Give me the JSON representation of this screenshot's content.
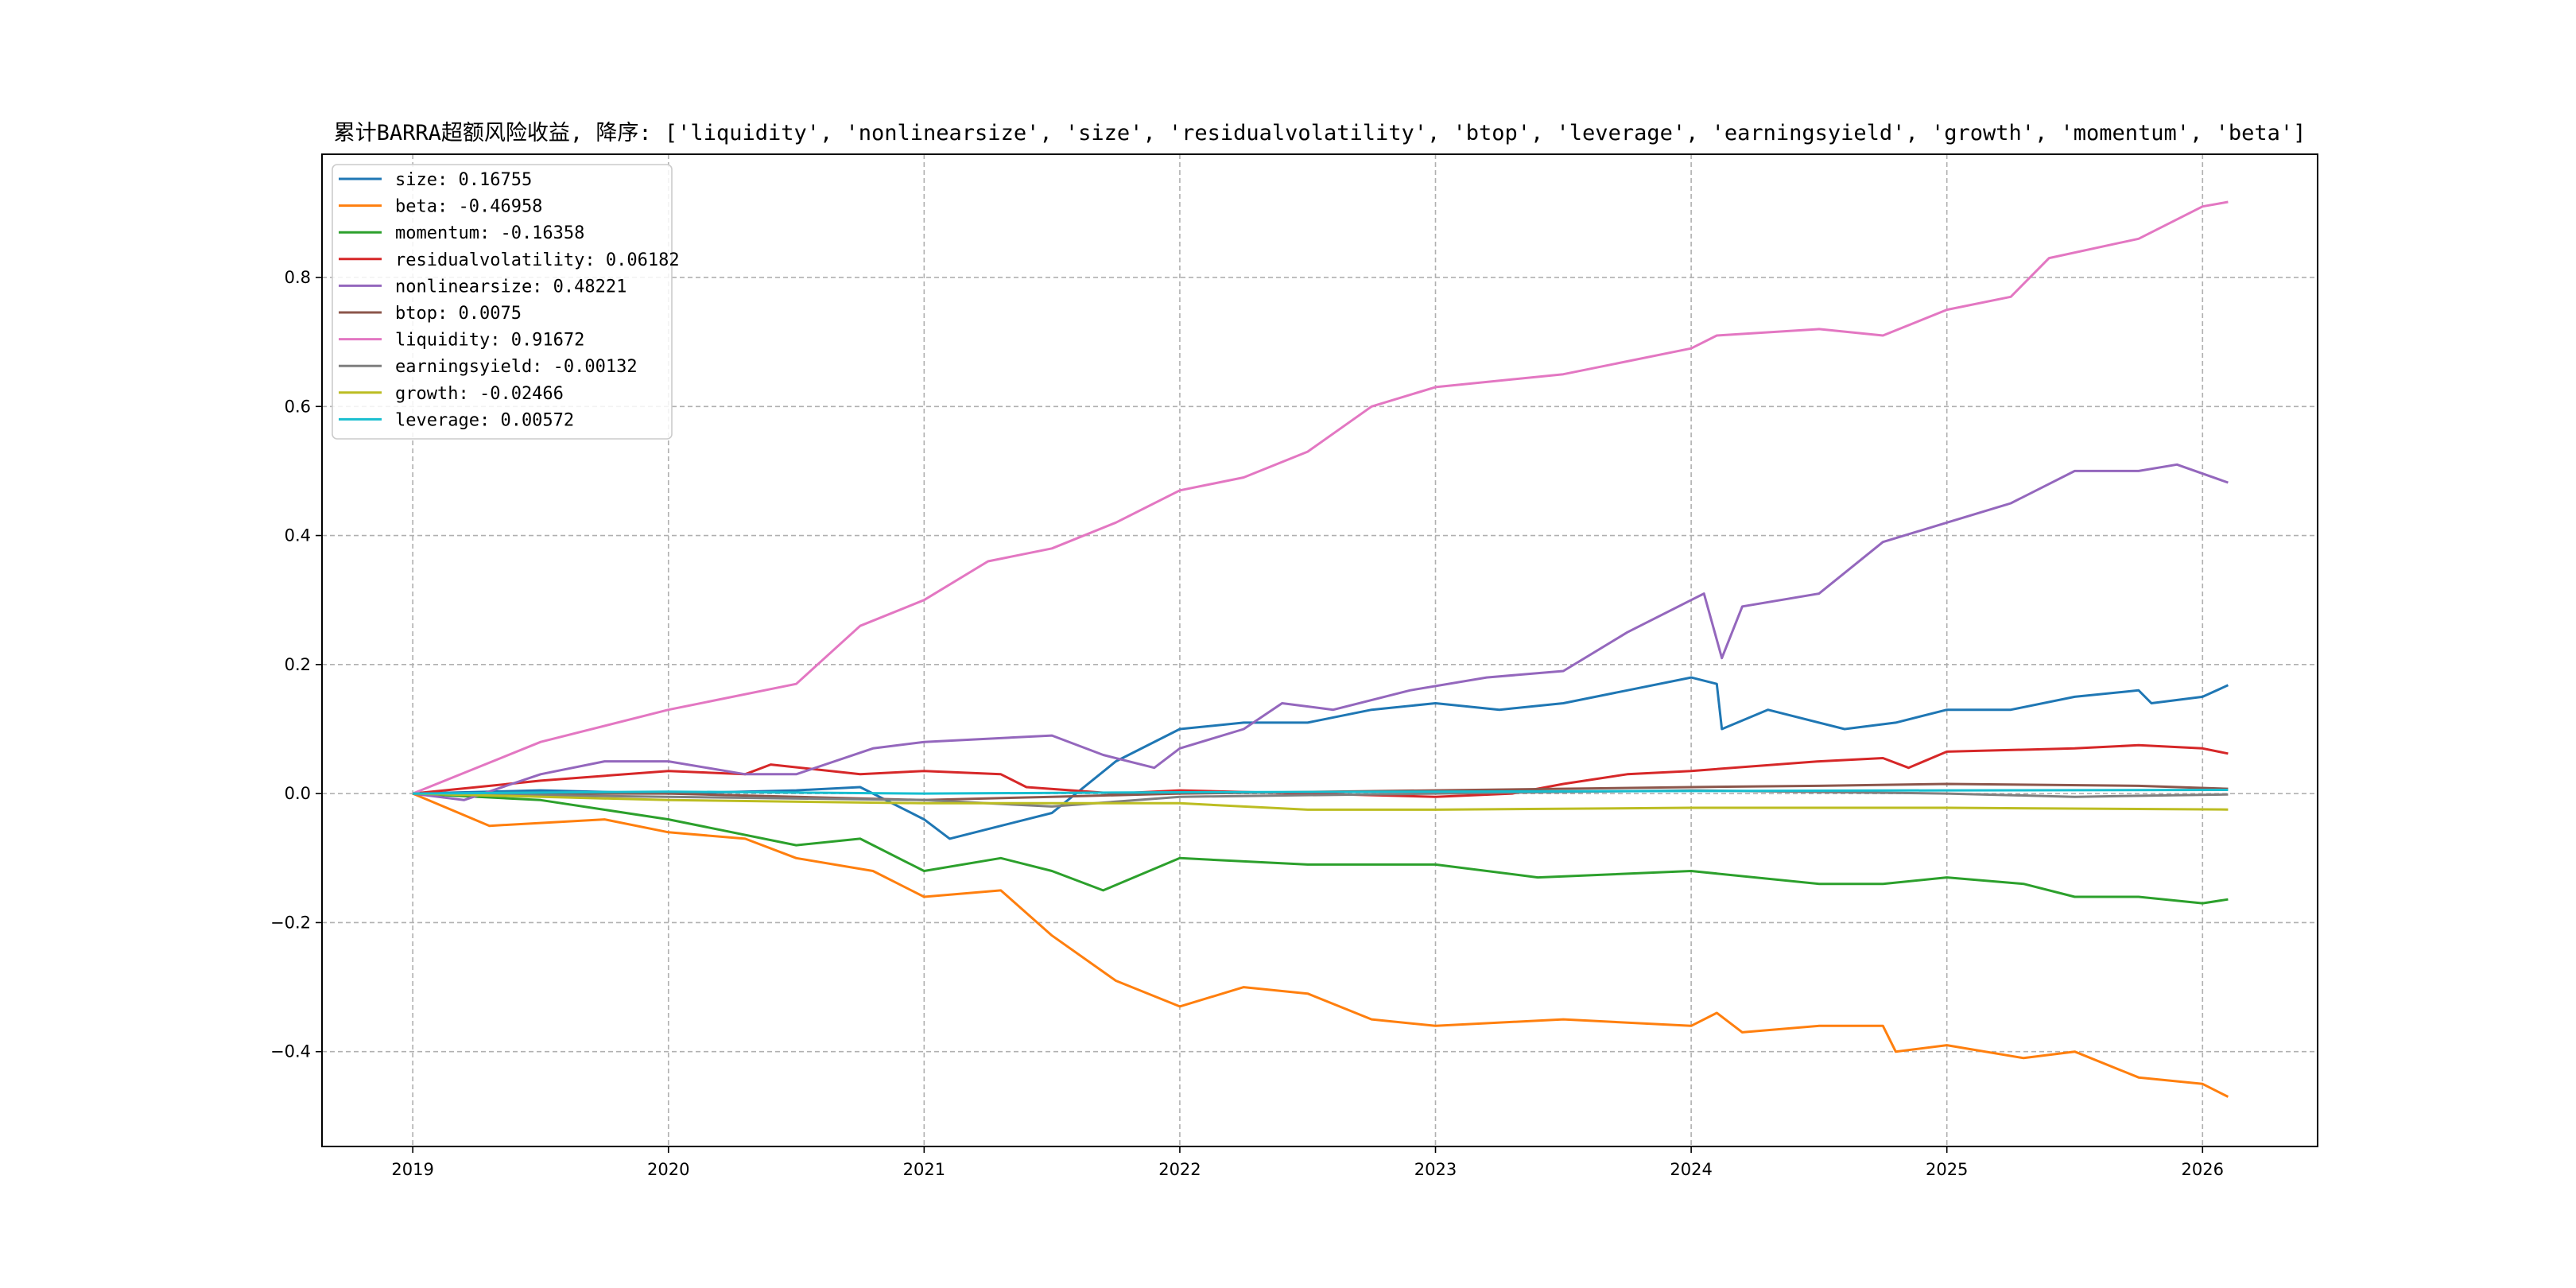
{
  "chart_data": {
    "type": "line",
    "title": "累计BARRA超额风险收益,  降序: ['liquidity', 'nonlinearsize', 'size', 'residualvolatility', 'btop', 'leverage', 'earningsyield', 'growth', 'momentum', 'beta']",
    "xlabel": "",
    "ylabel": "",
    "xlim": [
      2018.645,
      2026.45
    ],
    "ylim": [
      -0.547,
      0.991
    ],
    "grid": true,
    "legend_position": "top-left",
    "x_ticks": [
      2019,
      2020,
      2021,
      2022,
      2023,
      2024,
      2025,
      2026
    ],
    "x_tick_labels": [
      "2019",
      "2020",
      "2021",
      "2022",
      "2023",
      "2024",
      "2025",
      "2026"
    ],
    "y_ticks": [
      -0.4,
      -0.2,
      0.0,
      0.2,
      0.4,
      0.6,
      0.8
    ],
    "y_tick_labels": [
      "−0.4",
      "−0.2",
      "0.0",
      "0.2",
      "0.4",
      "0.6",
      "0.8"
    ],
    "series": [
      {
        "name": "size",
        "legend": "size: 0.16755",
        "color": "#1f77b4",
        "x": [
          2019,
          2019.5,
          2020,
          2020.5,
          2020.75,
          2021,
          2021.1,
          2021.3,
          2021.5,
          2021.75,
          2022,
          2022.25,
          2022.5,
          2022.75,
          2023,
          2023.25,
          2023.5,
          2023.75,
          2024,
          2024.1,
          2024.12,
          2024.3,
          2024.6,
          2024.8,
          2025,
          2025.25,
          2025.5,
          2025.75,
          2025.8,
          2026,
          2026.1
        ],
        "y": [
          0,
          0.005,
          0.0,
          0.005,
          0.01,
          -0.04,
          -0.07,
          -0.05,
          -0.03,
          0.05,
          0.1,
          0.11,
          0.11,
          0.13,
          0.14,
          0.13,
          0.14,
          0.16,
          0.18,
          0.17,
          0.1,
          0.13,
          0.1,
          0.11,
          0.13,
          0.13,
          0.15,
          0.16,
          0.14,
          0.15,
          0.168
        ]
      },
      {
        "name": "beta",
        "legend": "beta: -0.46958",
        "color": "#ff7f0e",
        "x": [
          2019,
          2019.3,
          2019.75,
          2020,
          2020.3,
          2020.5,
          2020.8,
          2021,
          2021.3,
          2021.5,
          2021.75,
          2022,
          2022.25,
          2022.5,
          2022.75,
          2023,
          2023.5,
          2024,
          2024.1,
          2024.2,
          2024.5,
          2024.75,
          2024.8,
          2025,
          2025.3,
          2025.5,
          2025.75,
          2026,
          2026.1
        ],
        "y": [
          0,
          -0.05,
          -0.04,
          -0.06,
          -0.07,
          -0.1,
          -0.12,
          -0.16,
          -0.15,
          -0.22,
          -0.29,
          -0.33,
          -0.3,
          -0.31,
          -0.35,
          -0.36,
          -0.35,
          -0.36,
          -0.34,
          -0.37,
          -0.36,
          -0.36,
          -0.4,
          -0.39,
          -0.41,
          -0.4,
          -0.44,
          -0.45,
          -0.47
        ]
      },
      {
        "name": "momentum",
        "legend": "momentum: -0.16358",
        "color": "#2ca02c",
        "x": [
          2019,
          2019.5,
          2020,
          2020.5,
          2020.75,
          2021,
          2021.3,
          2021.5,
          2021.7,
          2022,
          2022.5,
          2023,
          2023.4,
          2024,
          2024.5,
          2024.75,
          2025,
          2025.3,
          2025.5,
          2025.75,
          2026,
          2026.1
        ],
        "y": [
          0,
          -0.01,
          -0.04,
          -0.08,
          -0.07,
          -0.12,
          -0.1,
          -0.12,
          -0.15,
          -0.1,
          -0.11,
          -0.11,
          -0.13,
          -0.12,
          -0.14,
          -0.14,
          -0.13,
          -0.14,
          -0.16,
          -0.16,
          -0.17,
          -0.164
        ]
      },
      {
        "name": "residualvolatility",
        "legend": "residualvolatility: 0.06182",
        "color": "#d62728",
        "x": [
          2019,
          2019.5,
          2020,
          2020.3,
          2020.4,
          2020.75,
          2021,
          2021.3,
          2021.4,
          2021.75,
          2022,
          2022.5,
          2023,
          2023.3,
          2023.5,
          2023.75,
          2024,
          2024.5,
          2024.75,
          2024.85,
          2025,
          2025.5,
          2025.75,
          2026,
          2026.1
        ],
        "y": [
          0,
          0.02,
          0.035,
          0.03,
          0.045,
          0.03,
          0.035,
          0.03,
          0.01,
          0.0,
          0.005,
          0.0,
          -0.005,
          0.0,
          0.015,
          0.03,
          0.035,
          0.05,
          0.055,
          0.04,
          0.065,
          0.07,
          0.075,
          0.07,
          0.062
        ]
      },
      {
        "name": "nonlinearsize",
        "legend": "nonlinearsize: 0.48221",
        "color": "#9467bd",
        "x": [
          2019,
          2019.2,
          2019.5,
          2019.75,
          2020,
          2020.3,
          2020.5,
          2020.8,
          2021,
          2021.5,
          2021.7,
          2021.9,
          2022,
          2022.25,
          2022.4,
          2022.6,
          2022.9,
          2023.2,
          2023.5,
          2023.75,
          2024,
          2024.05,
          2024.12,
          2024.2,
          2024.5,
          2024.75,
          2025,
          2025.25,
          2025.5,
          2025.75,
          2025.9,
          2026.1
        ],
        "y": [
          0,
          -0.01,
          0.03,
          0.05,
          0.05,
          0.03,
          0.03,
          0.07,
          0.08,
          0.09,
          0.06,
          0.04,
          0.07,
          0.1,
          0.14,
          0.13,
          0.16,
          0.18,
          0.19,
          0.25,
          0.3,
          0.31,
          0.21,
          0.29,
          0.31,
          0.39,
          0.42,
          0.45,
          0.5,
          0.5,
          0.51,
          0.482
        ]
      },
      {
        "name": "btop",
        "legend": "btop: 0.0075",
        "color": "#8c564b",
        "x": [
          2019,
          2020,
          2021,
          2021.5,
          2022,
          2023,
          2024,
          2024.5,
          2025,
          2025.75,
          2026.1
        ],
        "y": [
          0,
          0.0,
          -0.01,
          -0.005,
          0.0,
          0.005,
          0.01,
          0.012,
          0.015,
          0.012,
          0.0075
        ]
      },
      {
        "name": "liquidity",
        "legend": "liquidity: 0.91672",
        "color": "#e377c2",
        "x": [
          2019,
          2019.5,
          2020,
          2020.5,
          2020.75,
          2021,
          2021.25,
          2021.5,
          2021.75,
          2022,
          2022.25,
          2022.5,
          2022.75,
          2023,
          2023.5,
          2024,
          2024.1,
          2024.5,
          2024.75,
          2025,
          2025.25,
          2025.4,
          2025.75,
          2026,
          2026.1
        ],
        "y": [
          0,
          0.08,
          0.13,
          0.17,
          0.26,
          0.3,
          0.36,
          0.38,
          0.42,
          0.47,
          0.49,
          0.53,
          0.6,
          0.63,
          0.65,
          0.69,
          0.71,
          0.72,
          0.71,
          0.75,
          0.77,
          0.83,
          0.86,
          0.91,
          0.917
        ]
      },
      {
        "name": "earningsyield",
        "legend": "earningsyield: -0.00132",
        "color": "#7f7f7f",
        "x": [
          2019,
          2020,
          2021,
          2021.5,
          2022,
          2023,
          2024,
          2025,
          2025.5,
          2026.1
        ],
        "y": [
          0,
          -0.005,
          -0.01,
          -0.02,
          -0.005,
          0.0,
          0.005,
          0.0,
          -0.005,
          -0.00132
        ]
      },
      {
        "name": "growth",
        "legend": "growth: -0.02466",
        "color": "#bcbd22",
        "x": [
          2019,
          2020,
          2021,
          2022,
          2022.5,
          2023,
          2024,
          2025,
          2026.1
        ],
        "y": [
          0,
          -0.01,
          -0.015,
          -0.015,
          -0.025,
          -0.025,
          -0.022,
          -0.022,
          -0.02466
        ]
      },
      {
        "name": "leverage",
        "legend": "leverage: 0.00572",
        "color": "#17becf",
        "x": [
          2019,
          2020,
          2021,
          2022,
          2023,
          2024,
          2025,
          2026.1
        ],
        "y": [
          0,
          0.003,
          0.0,
          0.002,
          0.003,
          0.004,
          0.005,
          0.00572
        ]
      }
    ]
  }
}
